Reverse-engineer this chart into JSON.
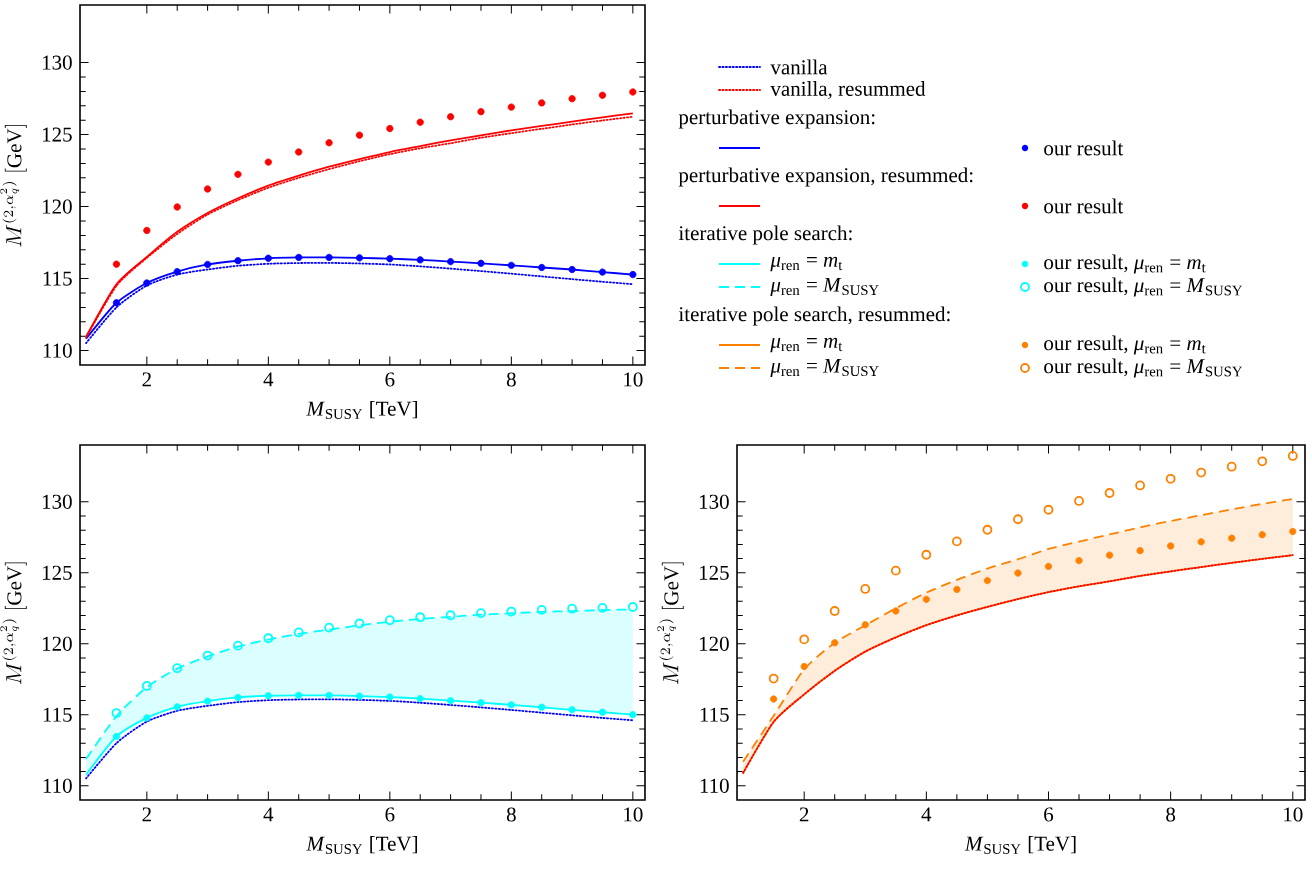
{
  "chart_data": [
    {
      "type": "line",
      "xlabel": "*M*$_{SUSY}$ [TeV]",
      "ylabel": "M^{(2,\\alpha_q^2)}\\ [\\mathrm{GeV}]",
      "xlim": [
        0.9,
        10.2
      ],
      "ylim": [
        109,
        134
      ],
      "xticks": [
        2,
        4,
        6,
        8,
        10
      ],
      "yticks": [
        110,
        115,
        120,
        125,
        130
      ],
      "legend": "right",
      "annotations": [
        "perturbative expansion:",
        "perturbative expansion, resummed:"
      ],
      "series": [
        {
          "name": "vanilla",
          "line_style": "dotted",
          "color": "#0000ff",
          "x": [
            1,
            1.5,
            2,
            2.5,
            3,
            3.5,
            4,
            4.5,
            5,
            5.5,
            6,
            6.5,
            7,
            7.5,
            8,
            8.5,
            9,
            9.5,
            10
          ],
          "values": [
            110.52,
            113.0,
            114.52,
            115.28,
            115.63,
            115.89,
            116.03,
            116.08,
            116.09,
            116.05,
            115.98,
            115.85,
            115.69,
            115.52,
            115.34,
            115.15,
            114.96,
            114.78,
            114.61
          ]
        },
        {
          "name": "vanilla, resummed",
          "line_style": "dotted",
          "color": "#ff0000",
          "x": [
            1,
            1.5,
            2,
            2.5,
            3,
            3.5,
            4,
            4.5,
            5,
            5.5,
            6,
            6.5,
            7,
            7.5,
            8,
            8.5,
            9,
            9.5,
            10
          ],
          "values": [
            110.9,
            114.5,
            116.44,
            118.1,
            119.45,
            120.45,
            121.31,
            122.0,
            122.6,
            123.15,
            123.64,
            124.05,
            124.4,
            124.78,
            125.1,
            125.4,
            125.7,
            125.98,
            126.24
          ]
        },
        {
          "line_style": "solid",
          "color": "#0000ff",
          "x": [
            1,
            1.5,
            2,
            2.5,
            3,
            3.5,
            4,
            4.5,
            5,
            5.5,
            6,
            6.5,
            7,
            7.5,
            8,
            8.5,
            9,
            9.5,
            10
          ],
          "values": [
            110.82,
            113.32,
            114.69,
            115.48,
            115.98,
            116.24,
            116.41,
            116.47,
            116.47,
            116.44,
            116.38,
            116.3,
            116.18,
            116.06,
            115.92,
            115.77,
            115.63,
            115.45,
            115.28
          ]
        },
        {
          "name": "our result",
          "type": "scatter",
          "marker": "circle",
          "color": "#0000ff",
          "x": [
            1.5,
            2,
            2.5,
            3,
            3.5,
            4,
            4.5,
            5,
            5.5,
            6,
            6.5,
            7,
            7.5,
            8,
            8.5,
            9,
            9.5,
            10
          ],
          "values": [
            113.32,
            114.69,
            115.48,
            115.98,
            116.24,
            116.41,
            116.47,
            116.47,
            116.44,
            116.38,
            116.3,
            116.18,
            116.06,
            115.92,
            115.77,
            115.63,
            115.45,
            115.28
          ]
        },
        {
          "line_style": "solid",
          "color": "#ff0000",
          "x": [
            1,
            1.5,
            2,
            2.5,
            3,
            3.5,
            4,
            4.5,
            5,
            5.5,
            6,
            6.5,
            7,
            7.5,
            8,
            8.5,
            9,
            9.5,
            10
          ],
          "values": [
            110.96,
            114.6,
            116.5,
            118.25,
            119.56,
            120.58,
            121.46,
            122.15,
            122.77,
            123.3,
            123.79,
            124.2,
            124.6,
            124.95,
            125.3,
            125.6,
            125.9,
            126.2,
            126.47
          ]
        },
        {
          "name": "our result",
          "type": "scatter",
          "marker": "circle",
          "color": "#ff0000",
          "x": [
            1.5,
            2,
            2.5,
            3,
            3.5,
            4,
            4.5,
            5,
            5.5,
            6,
            6.5,
            7,
            7.5,
            8,
            8.5,
            9,
            9.5,
            10
          ],
          "values": [
            116.0,
            118.34,
            119.97,
            121.22,
            122.24,
            123.09,
            123.79,
            124.43,
            124.96,
            125.42,
            125.86,
            126.24,
            126.59,
            126.91,
            127.2,
            127.49,
            127.73,
            127.96
          ]
        }
      ]
    },
    {
      "type": "line",
      "xlabel": "*M*$_{SUSY}$ [TeV]",
      "ylabel": "M^{(2,\\alpha_q^2)}\\ [\\mathrm{GeV}]",
      "xlim": [
        0.9,
        10.2
      ],
      "ylim": [
        109,
        134
      ],
      "xticks": [
        2,
        4,
        6,
        8,
        10
      ],
      "yticks": [
        110,
        115,
        120,
        125,
        130
      ],
      "legend": "top",
      "annotations": [
        "iterative pole search:"
      ],
      "series": [
        {
          "line_style": "dotted",
          "color": "#0000ff",
          "x": [
            1,
            1.5,
            2,
            2.5,
            3,
            3.5,
            4,
            4.5,
            5,
            5.5,
            6,
            6.5,
            7,
            7.5,
            8,
            8.5,
            9,
            9.5,
            10
          ],
          "values": [
            110.52,
            113.0,
            114.52,
            115.28,
            115.63,
            115.89,
            116.03,
            116.08,
            116.09,
            116.05,
            115.98,
            115.85,
            115.69,
            115.52,
            115.34,
            115.15,
            114.96,
            114.78,
            114.61
          ]
        },
        {
          "name": "*μ*$_{ren}$ = *m*$_{t}$",
          "line_style": "solid",
          "color": "#00ffff",
          "x": [
            1,
            1.5,
            2,
            2.5,
            3,
            3.5,
            4,
            4.5,
            5,
            5.5,
            6,
            6.5,
            7,
            7.5,
            8,
            8.5,
            9,
            9.5,
            10
          ],
          "values": [
            110.78,
            113.47,
            114.78,
            115.56,
            115.96,
            116.22,
            116.34,
            116.37,
            116.37,
            116.31,
            116.25,
            116.14,
            115.99,
            115.85,
            115.7,
            115.53,
            115.35,
            115.18,
            115.01
          ]
        },
        {
          "name": "our result, *μ*$_{ren}$ = *m*$_{t}$",
          "type": "scatter",
          "marker": "circle",
          "color": "#00ffff",
          "x": [
            1.5,
            2,
            2.5,
            3,
            3.5,
            4,
            4.5,
            5,
            5.5,
            6,
            6.5,
            7,
            7.5,
            8,
            8.5,
            9,
            9.5,
            10
          ],
          "values": [
            113.47,
            114.78,
            115.56,
            115.96,
            116.22,
            116.34,
            116.37,
            116.37,
            116.31,
            116.25,
            116.14,
            115.99,
            115.85,
            115.7,
            115.53,
            115.35,
            115.18,
            115.01
          ]
        },
        {
          "name": "*μ*$_{ren}$ = *M*$_{SUSY}$",
          "line_style": "dashed",
          "color": "#00ffff",
          "x": [
            1,
            1.5,
            2,
            2.5,
            3,
            3.5,
            4,
            4.5,
            5,
            5.5,
            6,
            6.5,
            7,
            7.5,
            8,
            8.5,
            9,
            9.5,
            10
          ],
          "values": [
            111.88,
            114.9,
            116.95,
            118.25,
            119.12,
            119.8,
            120.3,
            120.7,
            121.0,
            121.3,
            121.55,
            121.75,
            121.9,
            122.05,
            122.15,
            122.25,
            122.3,
            122.38,
            122.42
          ],
          "lower": [
            110.78,
            113.47,
            114.78,
            115.56,
            115.96,
            116.22,
            116.34,
            116.37,
            116.37,
            116.31,
            116.25,
            116.14,
            115.99,
            115.85,
            115.7,
            115.53,
            115.35,
            115.18,
            115.01
          ],
          "upper": [
            111.88,
            114.9,
            116.95,
            118.25,
            119.12,
            119.8,
            120.3,
            120.7,
            121.0,
            121.3,
            121.55,
            121.75,
            121.9,
            122.05,
            122.15,
            122.25,
            122.3,
            122.38,
            122.42
          ]
        },
        {
          "name": "our result, *μ*$_{ren}$ = *M*$_{SUSY}$",
          "type": "scatter",
          "marker": "open circle",
          "color": "#00ffff",
          "x": [
            1.5,
            2,
            2.5,
            3,
            3.5,
            4,
            4.5,
            5,
            5.5,
            6,
            6.5,
            7,
            7.5,
            8,
            8.5,
            9,
            9.5,
            10
          ],
          "values": [
            115.12,
            117.03,
            118.28,
            119.17,
            119.87,
            120.39,
            120.8,
            121.14,
            121.43,
            121.66,
            121.87,
            122.01,
            122.16,
            122.27,
            122.39,
            122.47,
            122.53,
            122.59
          ]
        }
      ]
    },
    {
      "type": "line",
      "xlabel": "*M*$_{SUSY}$ [TeV]",
      "ylabel": "M^{(2,\\alpha_q^2)}\\ [\\mathrm{GeV}]",
      "xlim": [
        0.9,
        10.2
      ],
      "ylim": [
        109,
        134
      ],
      "xticks": [
        2,
        4,
        6,
        8,
        10
      ],
      "yticks": [
        110,
        115,
        120,
        125,
        130
      ],
      "legend": "top",
      "annotations": [
        "iterative pole search, resummed:"
      ],
      "series": [
        {
          "line_style": "dotted",
          "color": "#ff0000",
          "x": [
            1,
            1.5,
            2,
            2.5,
            3,
            3.5,
            4,
            4.5,
            5,
            5.5,
            6,
            6.5,
            7,
            7.5,
            8,
            8.5,
            9,
            9.5,
            10
          ],
          "values": [
            110.9,
            114.5,
            116.44,
            118.1,
            119.45,
            120.45,
            121.31,
            122.0,
            122.6,
            123.15,
            123.64,
            124.05,
            124.4,
            124.78,
            125.1,
            125.4,
            125.7,
            125.98,
            126.24
          ]
        },
        {
          "name": "*μ*$_{ren}$ = *m*$_{t}$",
          "line_style": "solid",
          "color": "#ff8000",
          "x": [
            1,
            1.5,
            2,
            2.5,
            3,
            3.5,
            4,
            4.5,
            5,
            5.5,
            6,
            6.5,
            7,
            7.5,
            8,
            8.5,
            9,
            9.5,
            10
          ],
          "values": [
            110.9,
            114.5,
            116.44,
            118.1,
            119.45,
            120.45,
            121.31,
            122.0,
            122.6,
            123.15,
            123.64,
            124.05,
            124.4,
            124.78,
            125.1,
            125.4,
            125.7,
            125.98,
            126.24
          ]
        },
        {
          "name": "our result, *μ*$_{ren}$ = *m*$_{t}$",
          "type": "scatter",
          "marker": "circle",
          "color": "#ff8000",
          "x": [
            1.5,
            2,
            2.5,
            3,
            3.5,
            4,
            4.5,
            5,
            5.5,
            6,
            6.5,
            7,
            7.5,
            8,
            8.5,
            9,
            9.5,
            10
          ],
          "values": [
            116.11,
            118.4,
            120.07,
            121.34,
            122.31,
            123.13,
            123.83,
            124.45,
            124.98,
            125.45,
            125.86,
            126.24,
            126.56,
            126.89,
            127.18,
            127.44,
            127.68,
            127.91
          ]
        },
        {
          "name": "*μ*$_{ren}$ = *M*$_{SUSY}$",
          "line_style": "dashed",
          "color": "#ff8000",
          "x": [
            1,
            1.5,
            2,
            2.5,
            3,
            3.5,
            4,
            4.5,
            5,
            5.5,
            6,
            6.5,
            7,
            7.5,
            8,
            8.5,
            9,
            9.5,
            10
          ],
          "values": [
            111.7,
            114.93,
            118.2,
            120.07,
            121.3,
            122.5,
            123.6,
            124.5,
            125.3,
            125.95,
            126.68,
            127.2,
            127.7,
            128.2,
            128.65,
            129.05,
            129.47,
            129.85,
            130.2
          ],
          "lower": [
            110.9,
            114.5,
            116.44,
            118.1,
            119.45,
            120.45,
            121.31,
            122.0,
            122.6,
            123.15,
            123.64,
            124.05,
            124.4,
            124.78,
            125.1,
            125.4,
            125.7,
            125.98,
            126.24
          ],
          "upper": [
            111.7,
            114.93,
            118.2,
            120.07,
            121.3,
            122.5,
            123.6,
            124.5,
            125.3,
            125.95,
            126.68,
            127.2,
            127.7,
            128.2,
            128.65,
            129.05,
            129.47,
            129.85,
            130.2
          ]
        },
        {
          "name": "our result, *μ*$_{ren}$ = *M*$_{SUSY}$",
          "type": "scatter",
          "marker": "open circle",
          "color": "#ff8000",
          "x": [
            1.5,
            2,
            2.5,
            3,
            3.5,
            4,
            4.5,
            5,
            5.5,
            6,
            6.5,
            7,
            7.5,
            8,
            8.5,
            9,
            9.5,
            10
          ],
          "values": [
            117.55,
            120.31,
            122.31,
            123.86,
            125.15,
            126.27,
            127.21,
            128.03,
            128.77,
            129.44,
            130.06,
            130.62,
            131.15,
            131.62,
            132.06,
            132.47,
            132.85,
            133.23
          ]
        }
      ]
    }
  ]
}
